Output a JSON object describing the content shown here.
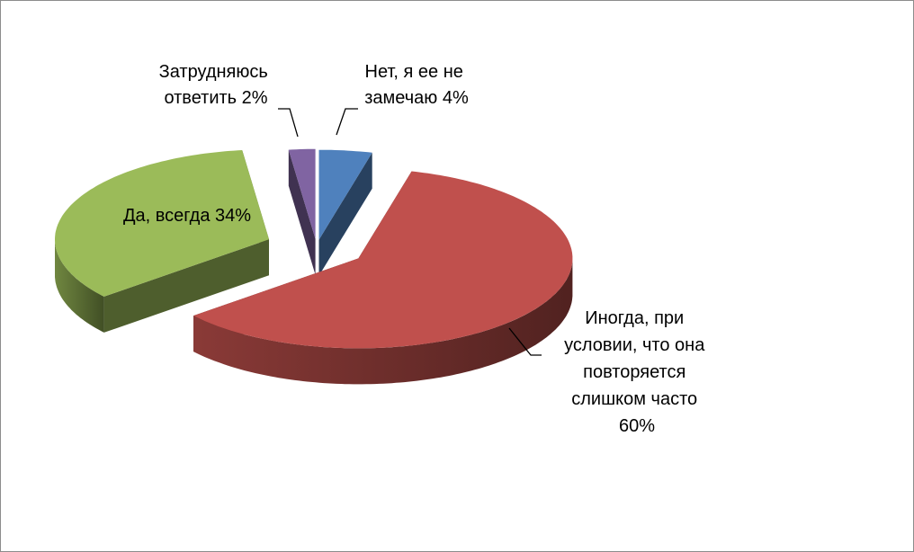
{
  "chart_data": {
    "type": "pie",
    "style": "3d-exploded",
    "categories": [
      "Нет, я ее не замечаю",
      "Иногда, при условии, что она повторяется слишком часто",
      "Да, всегда",
      "Затрудняюсь ответить"
    ],
    "values": [
      4,
      60,
      34,
      2
    ],
    "unit": "%",
    "data_labels": [
      {
        "lines": [
          "Нет, я ее не",
          "замечаю 4%"
        ]
      },
      {
        "lines": [
          "Иногда, при",
          "условии, что она",
          "повторяется",
          "слишком часто",
          "60%"
        ]
      },
      {
        "lines": [
          "Да, всегда 34%"
        ]
      },
      {
        "lines": [
          "Затрудняюсь",
          "ответить 2%"
        ]
      }
    ],
    "colors": [
      "#4f81bd",
      "#c0504d",
      "#9bbb59",
      "#8064a2"
    ],
    "title": "",
    "legend": "none"
  }
}
